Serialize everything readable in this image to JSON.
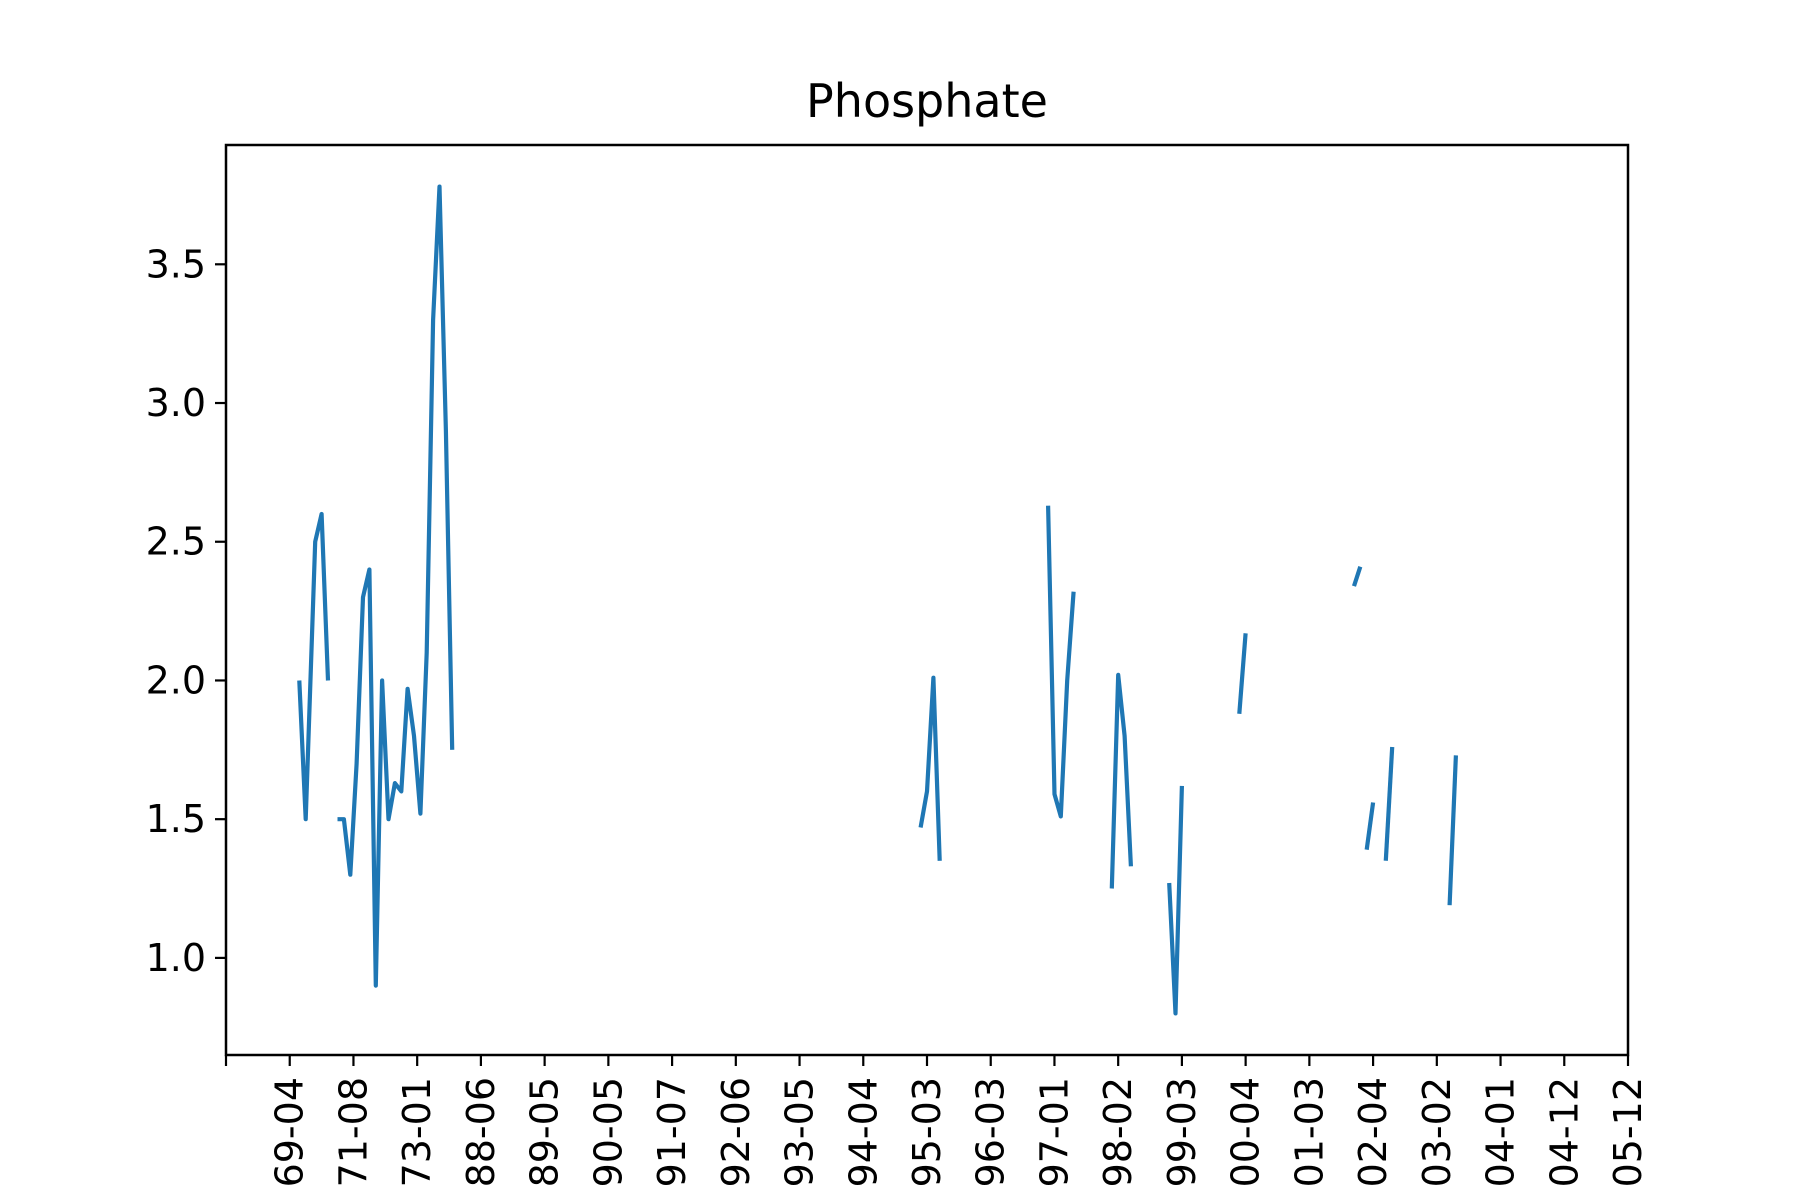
{
  "chart_data": {
    "type": "line",
    "title": "Phosphate",
    "xlabel": "",
    "ylabel": "",
    "ylim": [
      0.65,
      3.93
    ],
    "y_ticks": [
      {
        "value": 1.0,
        "label": "1.0"
      },
      {
        "value": 1.5,
        "label": "1.5"
      },
      {
        "value": 2.0,
        "label": "2.0"
      },
      {
        "value": 2.5,
        "label": "2.5"
      },
      {
        "value": 3.0,
        "label": "3.0"
      },
      {
        "value": 3.5,
        "label": "3.5"
      }
    ],
    "x_categories": [
      "69-04",
      "71-08",
      "73-01",
      "88-06",
      "89-05",
      "90-05",
      "91-07",
      "92-06",
      "93-05",
      "94-04",
      "95-03",
      "96-03",
      "97-01",
      "98-02",
      "99-03",
      "00-04",
      "01-03",
      "02-04",
      "03-02",
      "04-01",
      "04-12",
      "05-12"
    ],
    "x_range": [
      -1.0,
      21.0
    ],
    "line_color": "#1f77b4",
    "grid": false,
    "legend": "none",
    "series": [
      {
        "segments": [
          [
            [
              0.15,
              2.0
            ],
            [
              0.25,
              1.5
            ],
            [
              0.4,
              2.5
            ],
            [
              0.5,
              2.6
            ],
            [
              0.6,
              2.0
            ]
          ],
          [
            [
              0.75,
              1.5
            ],
            [
              0.85,
              1.5
            ],
            [
              0.95,
              1.3
            ],
            [
              1.05,
              1.7
            ],
            [
              1.15,
              2.3
            ],
            [
              1.25,
              2.4
            ],
            [
              1.35,
              0.9
            ],
            [
              1.45,
              2.0
            ],
            [
              1.55,
              1.5
            ],
            [
              1.65,
              1.63
            ],
            [
              1.75,
              1.6
            ],
            [
              1.85,
              1.97
            ],
            [
              1.95,
              1.8
            ],
            [
              2.05,
              1.52
            ],
            [
              2.15,
              2.1
            ],
            [
              2.25,
              3.3
            ],
            [
              2.35,
              3.78
            ],
            [
              2.45,
              2.9
            ],
            [
              2.55,
              1.75
            ]
          ],
          [
            [
              9.9,
              1.47
            ],
            [
              10.0,
              1.6
            ],
            [
              10.1,
              2.01
            ],
            [
              10.2,
              1.35
            ]
          ],
          [
            [
              11.9,
              2.63
            ],
            [
              12.0,
              1.59
            ],
            [
              12.1,
              1.51
            ],
            [
              12.2,
              2.0
            ],
            [
              12.3,
              2.32
            ]
          ],
          [
            [
              12.9,
              1.25
            ],
            [
              13.0,
              2.02
            ],
            [
              13.1,
              1.8
            ],
            [
              13.2,
              1.33
            ]
          ],
          [
            [
              13.8,
              1.27
            ],
            [
              13.9,
              0.8
            ],
            [
              14.0,
              1.62
            ]
          ],
          [
            [
              14.9,
              1.88
            ],
            [
              15.0,
              2.17
            ]
          ],
          [
            [
              16.7,
              2.34
            ],
            [
              16.8,
              2.41
            ]
          ],
          [
            [
              16.9,
              1.39
            ],
            [
              17.0,
              1.56
            ]
          ],
          [
            [
              17.2,
              1.35
            ],
            [
              17.3,
              1.76
            ]
          ],
          [
            [
              18.2,
              1.19
            ],
            [
              18.3,
              1.73
            ]
          ]
        ]
      }
    ]
  }
}
